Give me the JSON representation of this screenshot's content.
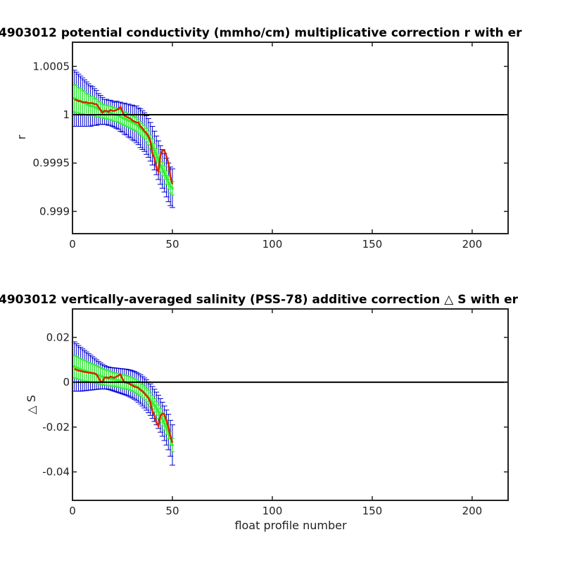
{
  "chart_data": [
    {
      "type": "line",
      "title": "4903012 potential conductivity (mmho/cm) multiplicative correction r with er",
      "xlabel": "",
      "ylabel": "r",
      "xlim": [
        0,
        218
      ],
      "ylim": [
        0.99877,
        1.00075
      ],
      "x_ticks": [
        0,
        50,
        100,
        150,
        200
      ],
      "x_tick_labels": [
        "0",
        "50",
        "100",
        "150",
        "200"
      ],
      "y_ticks": [
        0.999,
        0.9995,
        1,
        1.0005
      ],
      "y_tick_labels": [
        "0.999",
        "0.9995",
        "1",
        "1.0005"
      ],
      "reference_line": 1,
      "grid": false,
      "legend": "none",
      "colors": {
        "wide_error": "#0000cc",
        "narrow_error": "#33ee33",
        "fit": "#dd2200",
        "reference": "#000000"
      },
      "x": [
        1,
        2,
        3,
        4,
        5,
        6,
        7,
        8,
        9,
        10,
        11,
        12,
        13,
        14,
        15,
        16,
        17,
        18,
        19,
        20,
        21,
        22,
        23,
        24,
        25,
        26,
        27,
        28,
        29,
        30,
        31,
        32,
        33,
        34,
        35,
        36,
        37,
        38,
        39,
        40,
        41,
        42,
        43,
        44,
        45,
        46,
        47,
        48,
        49,
        50
      ],
      "series": [
        {
          "role": "fit",
          "values": [
            1.00016,
            1.00015,
            1.00014,
            1.00014,
            1.00013,
            1.00013,
            1.00013,
            1.00012,
            1.00012,
            1.00012,
            1.00011,
            1.00011,
            1.00008,
            1.00005,
            1.00002,
            1.00004,
            1.00004,
            1.00003,
            1.00005,
            1.00004,
            1.00004,
            1.00005,
            1.00006,
            1.00008,
            1.00003,
            0.99999,
            0.99998,
            0.99997,
            0.99996,
            0.99994,
            0.99993,
            0.99992,
            0.99992,
            0.99988,
            0.99986,
            0.99983,
            0.99981,
            0.99978,
            0.99973,
            0.9996,
            0.99955,
            0.99945,
            0.99941,
            0.99958,
            0.99963,
            0.99963,
            0.99957,
            0.9995,
            0.99936,
            0.99928
          ]
        },
        {
          "role": "points",
          "values": [
            1.00017,
            1.00016,
            1.00015,
            1.00014,
            1.00013,
            1.00012,
            1.00011,
            1.0001,
            1.00009,
            1.00009,
            1.00008,
            1.00007,
            1.00006,
            1.00005,
            1.00004,
            1.00003,
            1.00003,
            1.00002,
            1.00002,
            1.00001,
            1.0,
            1.0,
            0.99999,
            0.99998,
            0.99997,
            0.99996,
            0.99995,
            0.99994,
            0.99993,
            0.99992,
            0.99991,
            0.9999,
            0.99988,
            0.99986,
            0.99984,
            0.99982,
            0.99979,
            0.99976,
            0.99972,
            0.99968,
            0.99963,
            0.99958,
            0.99953,
            0.99948,
            0.99944,
            0.9994,
            0.99935,
            0.9993,
            0.99926,
            0.99924
          ]
        },
        {
          "role": "wide_error",
          "half_widths": [
            0.00029,
            0.00028,
            0.00027,
            0.00026,
            0.00025,
            0.00024,
            0.00023,
            0.00022,
            0.00021,
            0.0002,
            0.00019,
            0.00018,
            0.00016,
            0.00015,
            0.00014,
            0.00013,
            0.00013,
            0.00013,
            0.00013,
            0.00013,
            0.00013,
            0.00014,
            0.00014,
            0.00015,
            0.00015,
            0.00016,
            0.00016,
            0.00017,
            0.00017,
            0.00018,
            0.00018,
            0.00019,
            0.00019,
            0.0002,
            0.0002,
            0.0002,
            0.0002,
            0.0002,
            0.0002,
            0.0002,
            0.0002,
            0.0002,
            0.0002,
            0.0002,
            0.0002,
            0.0002,
            0.0002,
            0.0002,
            0.0002,
            0.0002
          ]
        },
        {
          "role": "narrow_error",
          "half_widths": [
            0.00014,
            0.00014,
            0.00013,
            0.00013,
            0.00012,
            0.00012,
            0.00011,
            0.00011,
            0.0001,
            0.0001,
            9e-05,
            9e-05,
            8e-05,
            8e-05,
            7e-05,
            7e-05,
            7e-05,
            7e-05,
            7e-05,
            7e-05,
            7e-05,
            7e-05,
            7e-05,
            7e-05,
            7e-05,
            7e-05,
            7e-05,
            7e-05,
            7e-05,
            7e-05,
            7e-05,
            7e-05,
            7e-05,
            7e-05,
            7e-05,
            7e-05,
            7e-05,
            7e-05,
            7e-05,
            7e-05,
            7e-05,
            7e-05,
            7e-05,
            7e-05,
            7e-05,
            7e-05,
            7e-05,
            7e-05,
            7e-05,
            7e-05
          ]
        }
      ]
    },
    {
      "type": "line",
      "title": "4903012 vertically-averaged salinity (PSS-78) additive correction △ S with er",
      "xlabel": "float profile number",
      "ylabel": "△ S",
      "xlim": [
        0,
        218
      ],
      "ylim": [
        -0.0527,
        0.0327
      ],
      "x_ticks": [
        0,
        50,
        100,
        150,
        200
      ],
      "x_tick_labels": [
        "0",
        "50",
        "100",
        "150",
        "200"
      ],
      "y_ticks": [
        -0.04,
        -0.02,
        0,
        0.02
      ],
      "y_tick_labels": [
        "-0.04",
        "-0.02",
        "0",
        "0.02"
      ],
      "reference_line": 0,
      "grid": false,
      "legend": "none",
      "colors": {
        "wide_error": "#0000cc",
        "narrow_error": "#33ee33",
        "fit": "#dd2200",
        "reference": "#000000"
      },
      "x": [
        1,
        2,
        3,
        4,
        5,
        6,
        7,
        8,
        9,
        10,
        11,
        12,
        13,
        14,
        15,
        16,
        17,
        18,
        19,
        20,
        21,
        22,
        23,
        24,
        25,
        26,
        27,
        28,
        29,
        30,
        31,
        32,
        33,
        34,
        35,
        36,
        37,
        38,
        39,
        40,
        41,
        42,
        43,
        44,
        45,
        46,
        47,
        48,
        49,
        50
      ],
      "series": [
        {
          "role": "fit",
          "values": [
            0.006,
            0.0055,
            0.0052,
            0.005,
            0.0048,
            0.0046,
            0.0045,
            0.0043,
            0.0042,
            0.0041,
            0.004,
            0.0035,
            0.002,
            0.0005,
            0.0,
            0.002,
            0.0022,
            0.0018,
            0.0025,
            0.0022,
            0.002,
            0.0025,
            0.003,
            0.0035,
            0.0015,
            0.0,
            -0.0002,
            -0.0005,
            -0.001,
            -0.0015,
            -0.002,
            -0.0022,
            -0.0025,
            -0.0035,
            -0.004,
            -0.005,
            -0.006,
            -0.007,
            -0.009,
            -0.013,
            -0.015,
            -0.018,
            -0.0195,
            -0.015,
            -0.014,
            -0.0145,
            -0.017,
            -0.02,
            -0.024,
            -0.027
          ]
        },
        {
          "role": "points",
          "values": [
            0.007,
            0.0066,
            0.0062,
            0.0058,
            0.0055,
            0.0052,
            0.0049,
            0.0046,
            0.0043,
            0.004,
            0.0037,
            0.0034,
            0.0031,
            0.0028,
            0.0025,
            0.0022,
            0.002,
            0.0018,
            0.0016,
            0.0014,
            0.0012,
            0.001,
            0.0008,
            0.0006,
            0.0004,
            0.0002,
            0.0,
            -0.0003,
            -0.0006,
            -0.001,
            -0.0014,
            -0.0019,
            -0.0025,
            -0.0032,
            -0.004,
            -0.0048,
            -0.0057,
            -0.0067,
            -0.0078,
            -0.009,
            -0.0103,
            -0.0117,
            -0.0132,
            -0.0148,
            -0.0165,
            -0.0183,
            -0.0202,
            -0.0222,
            -0.025,
            -0.028
          ]
        },
        {
          "role": "wide_error",
          "half_widths": [
            0.011,
            0.0106,
            0.0102,
            0.0098,
            0.0094,
            0.009,
            0.0086,
            0.0082,
            0.0078,
            0.0074,
            0.007,
            0.0066,
            0.0062,
            0.0058,
            0.0055,
            0.0052,
            0.005,
            0.005,
            0.005,
            0.0051,
            0.0052,
            0.0053,
            0.0054,
            0.0055,
            0.0056,
            0.0057,
            0.0058,
            0.0059,
            0.006,
            0.0061,
            0.0062,
            0.0063,
            0.0064,
            0.0065,
            0.0066,
            0.0067,
            0.0068,
            0.0069,
            0.007,
            0.0071,
            0.0072,
            0.0073,
            0.0074,
            0.0075,
            0.0076,
            0.0077,
            0.0078,
            0.0079,
            0.008,
            0.009
          ]
        },
        {
          "role": "narrow_error",
          "half_widths": [
            0.005,
            0.0049,
            0.0048,
            0.0047,
            0.0046,
            0.0045,
            0.0044,
            0.0043,
            0.0042,
            0.0041,
            0.004,
            0.0039,
            0.0038,
            0.0037,
            0.0036,
            0.0035,
            0.0034,
            0.0033,
            0.0032,
            0.0031,
            0.003,
            0.003,
            0.003,
            0.003,
            0.003,
            0.003,
            0.003,
            0.003,
            0.003,
            0.003,
            0.003,
            0.003,
            0.003,
            0.003,
            0.003,
            0.003,
            0.003,
            0.003,
            0.003,
            0.003,
            0.003,
            0.003,
            0.003,
            0.003,
            0.003,
            0.003,
            0.003,
            0.003,
            0.003,
            0.003
          ]
        }
      ]
    }
  ]
}
